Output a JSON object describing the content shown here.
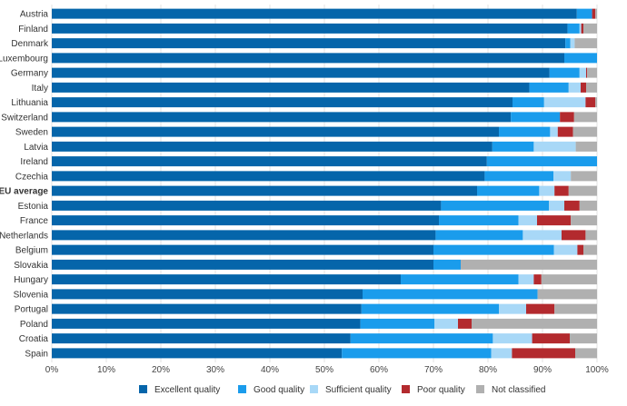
{
  "chart_data": {
    "type": "bar",
    "orientation": "horizontal",
    "stacked": true,
    "categories": [
      "Austria",
      "Finland",
      "Denmark",
      "Luxembourg",
      "Germany",
      "Italy",
      "Lithuania",
      "Switzerland",
      "Sweden",
      "Latvia",
      "Ireland",
      "Czechia",
      "EU average",
      "Estonia",
      "France",
      "Netherlands",
      "Belgium",
      "Slovakia",
      "Hungary",
      "Slovenia",
      "Portugal",
      "Poland",
      "Croatia",
      "Spain"
    ],
    "highlight_category": "EU average",
    "series": [
      {
        "name": "Excellent quality",
        "color": "#0565aa",
        "values": [
          96.3,
          94.6,
          94.2,
          94.0,
          91.3,
          87.6,
          84.5,
          84.2,
          82.0,
          80.8,
          79.8,
          79.4,
          78.0,
          71.4,
          71.0,
          70.4,
          70.0,
          70.0,
          64.0,
          57.0,
          56.8,
          56.6,
          54.8,
          53.2
        ]
      },
      {
        "name": "Good quality",
        "color": "#1a9cec",
        "values": [
          2.8,
          2.2,
          0.9,
          6.0,
          5.5,
          7.2,
          5.8,
          9.0,
          9.4,
          7.6,
          20.2,
          12.6,
          11.4,
          19.8,
          14.6,
          16.0,
          22.1,
          5.0,
          21.6,
          32.1,
          25.2,
          13.6,
          26.1,
          27.4
        ]
      },
      {
        "name": "Sufficient quality",
        "color": "#a8d8f7",
        "values": [
          0.0,
          0.3,
          0.8,
          0.0,
          1.2,
          2.2,
          7.6,
          0.0,
          1.4,
          7.7,
          0.0,
          3.2,
          2.8,
          2.8,
          3.4,
          7.1,
          4.3,
          0.0,
          2.8,
          0.0,
          5.0,
          4.3,
          7.2,
          3.8
        ]
      },
      {
        "name": "Poor quality",
        "color": "#b32a2e",
        "values": [
          0.6,
          0.4,
          0.0,
          0.0,
          0.2,
          1.0,
          1.8,
          2.6,
          2.8,
          0.0,
          0.0,
          0.0,
          2.6,
          2.8,
          6.2,
          4.4,
          1.1,
          0.0,
          1.4,
          0.0,
          5.2,
          2.5,
          6.9,
          11.6
        ]
      },
      {
        "name": "Not classified",
        "color": "#b0b0b0",
        "values": [
          0.3,
          2.5,
          4.1,
          0.0,
          1.8,
          2.0,
          0.3,
          4.2,
          4.4,
          3.9,
          0.0,
          4.8,
          5.2,
          3.2,
          4.8,
          2.1,
          2.5,
          25.0,
          10.2,
          10.9,
          7.8,
          23.0,
          5.0,
          4.0
        ]
      }
    ],
    "xlim": [
      0,
      100
    ],
    "x_ticks": [
      "0%",
      "10%",
      "20%",
      "30%",
      "40%",
      "50%",
      "60%",
      "70%",
      "80%",
      "90%",
      "100%"
    ],
    "x_grid": true,
    "legend_position": "bottom"
  }
}
